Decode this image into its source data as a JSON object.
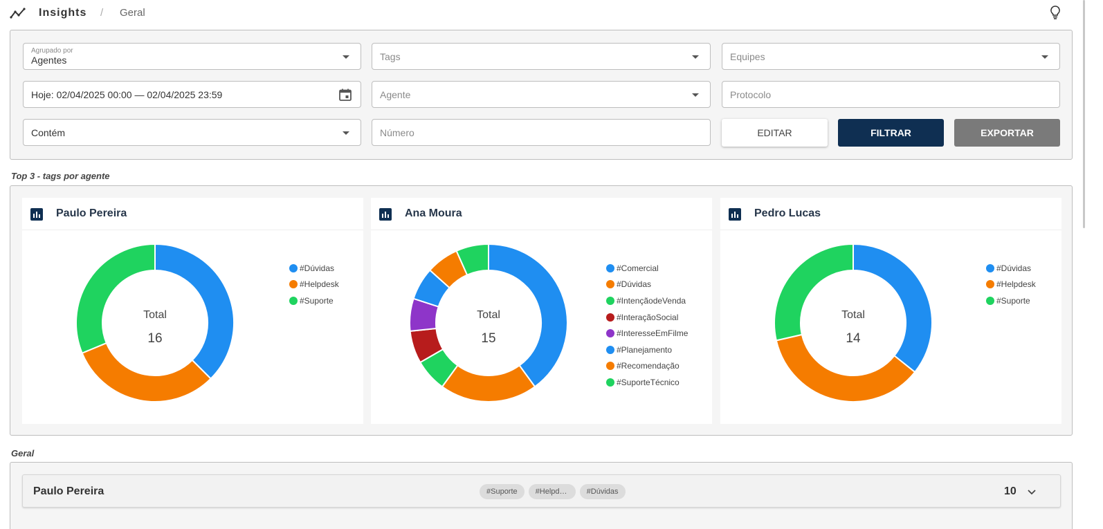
{
  "header": {
    "title": "Insights",
    "separator": "/",
    "breadcrumb": "Geral"
  },
  "filters": {
    "grouped_by": {
      "label": "Agrupado por",
      "value": "Agentes"
    },
    "tags": {
      "placeholder": "Tags"
    },
    "teams": {
      "placeholder": "Equipes"
    },
    "date_range": {
      "value": "Hoje: 02/04/2025 00:00 — 02/04/2025 23:59"
    },
    "agent": {
      "placeholder": "Agente"
    },
    "protocol": {
      "placeholder": "Protocolo"
    },
    "match_mode": {
      "value": "Contém"
    },
    "number": {
      "placeholder": "Número"
    },
    "buttons": {
      "edit": "EDITAR",
      "filter": "FILTRAR",
      "export": "EXPORTAR"
    }
  },
  "sections": {
    "top3": "Top 3 - tags por agente",
    "geral": "Geral"
  },
  "chart_data": [
    {
      "type": "pie",
      "title": "Paulo Pereira",
      "center_label": "Total",
      "total": "16",
      "categories": [
        "#Dúvidas",
        "#Helpdesk",
        "#Suporte"
      ],
      "values": [
        6,
        5,
        5
      ],
      "colors": [
        "#1f8ef1",
        "#f57c00",
        "#1fd35f"
      ]
    },
    {
      "type": "pie",
      "title": "Ana Moura",
      "center_label": "Total",
      "total": "15",
      "categories": [
        "#Comercial",
        "#Dúvidas",
        "#IntençãodeVenda",
        "#InteraçãoSocial",
        "#InteresseEmFilme",
        "#Planejamento",
        "#Recomendação",
        "#SuporteTécnico"
      ],
      "values": [
        6,
        3,
        1,
        1,
        1,
        1,
        1,
        1
      ],
      "colors": [
        "#1f8ef1",
        "#f57c00",
        "#1fd35f",
        "#b71c1c",
        "#8e35c9",
        "#1f8ef1",
        "#f57c00",
        "#1fd35f"
      ]
    },
    {
      "type": "pie",
      "title": "Pedro Lucas",
      "center_label": "Total",
      "total": "14",
      "categories": [
        "#Dúvidas",
        "#Helpdesk",
        "#Suporte"
      ],
      "values": [
        5,
        5,
        4
      ],
      "colors": [
        "#1f8ef1",
        "#f57c00",
        "#1fd35f"
      ]
    }
  ],
  "geral_rows": [
    {
      "name": "Paulo Pereira",
      "tags": [
        "#Suporte",
        "#Helpde...",
        "#Dúvidas"
      ],
      "count": "10"
    }
  ]
}
